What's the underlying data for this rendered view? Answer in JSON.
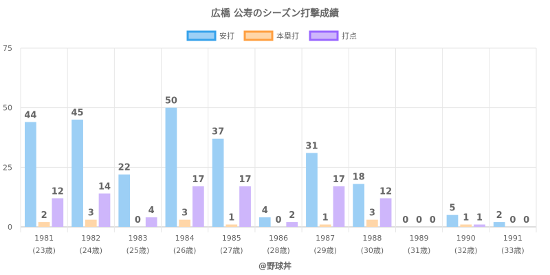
{
  "chart_data": {
    "type": "bar",
    "title": "広橋 公寿のシーズン打撃成績",
    "categories": [
      "1981",
      "1982",
      "1983",
      "1984",
      "1985",
      "1986",
      "1987",
      "1988",
      "1989",
      "1990",
      "1991"
    ],
    "category_sublabels": [
      "(23歳)",
      "(24歳)",
      "(25歳)",
      "(26歳)",
      "(27歳)",
      "(28歳)",
      "(29歳)",
      "(30歳)",
      "(31歳)",
      "(32歳)",
      "(33歳)"
    ],
    "series": [
      {
        "name": "安打",
        "values": [
          44,
          45,
          22,
          50,
          37,
          4,
          31,
          18,
          0,
          5,
          2
        ],
        "color": "#9ccff5",
        "border": "#36a2eb"
      },
      {
        "name": "本塁打",
        "values": [
          2,
          3,
          0,
          3,
          1,
          0,
          1,
          3,
          0,
          1,
          0
        ],
        "color": "#ffd6a8",
        "border": "#ff9f40"
      },
      {
        "name": "打点",
        "values": [
          12,
          14,
          4,
          17,
          17,
          2,
          17,
          12,
          0,
          1,
          0
        ],
        "color": "#ceb6fb",
        "border": "#9966ff"
      }
    ],
    "ylim": [
      0,
      75
    ],
    "yticks": [
      0,
      25,
      50,
      75
    ],
    "grid": true,
    "legend_position": "top",
    "data_labels": true
  },
  "credit": "@野球丼"
}
